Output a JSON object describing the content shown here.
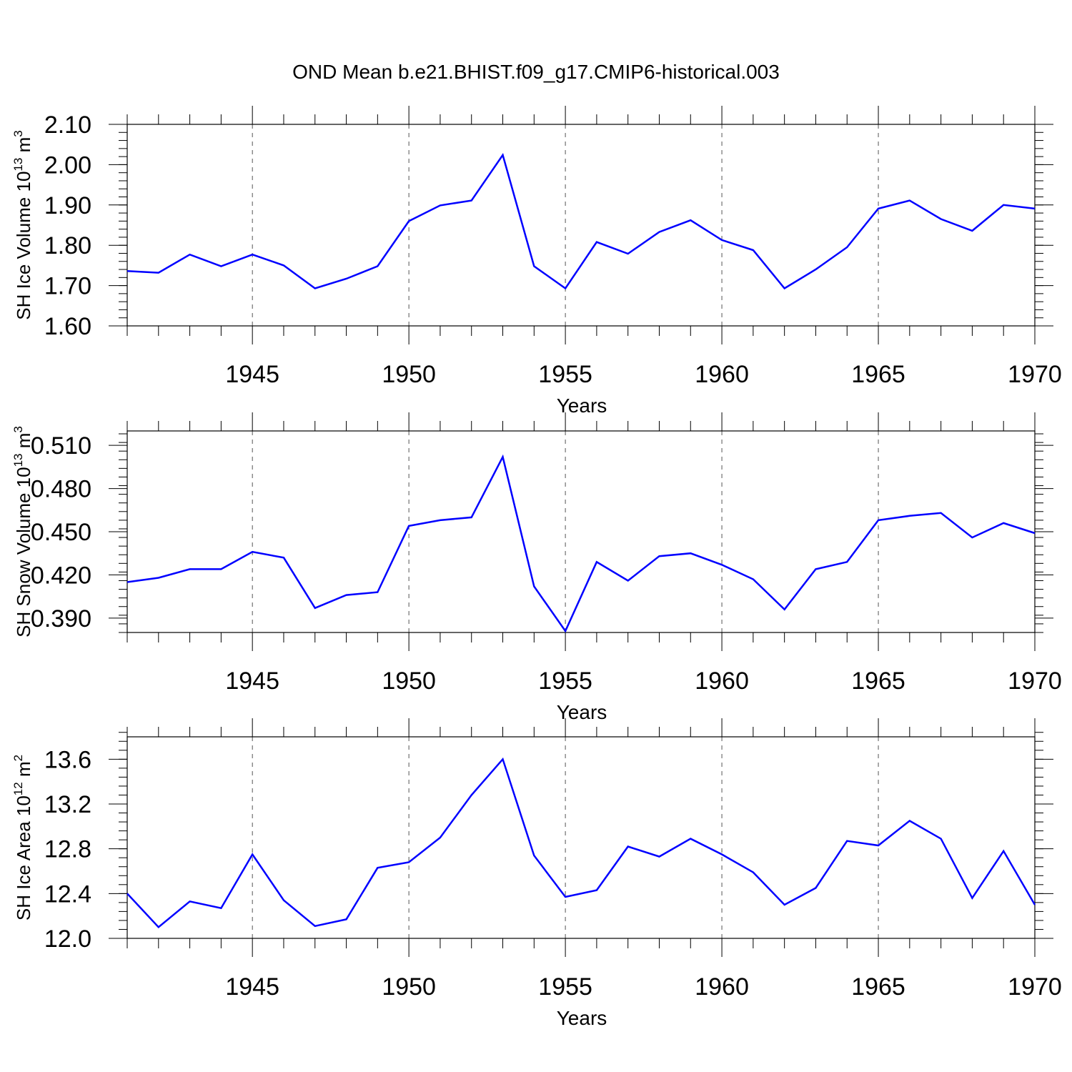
{
  "title": "OND Mean b.e21.BHIST.f09_g17.CMIP6-historical.003",
  "line_color": "#0000ff",
  "chart_data": [
    {
      "type": "line",
      "ylabel_main": "SH Ice Volume 10",
      "ylabel_exp": "13",
      "ylabel_unit": " m",
      "ylabel_unit_exp": "3",
      "xlabel": "Years",
      "xlim": [
        1941,
        1970
      ],
      "ylim": [
        1.6,
        2.1
      ],
      "grid": "vertical dashed at labeled years",
      "x_ticks": [
        "1945",
        "1950",
        "1955",
        "1960",
        "1965",
        "1970"
      ],
      "y_ticks": [
        "1.60",
        "1.70",
        "1.80",
        "1.90",
        "2.00",
        "2.10"
      ],
      "y_tick_values": [
        1.6,
        1.7,
        1.8,
        1.9,
        2.0,
        2.1
      ],
      "y_minor_step": 0.02,
      "series": [
        {
          "name": "SH Ice Volume",
          "x": [
            1941,
            1942,
            1943,
            1944,
            1945,
            1946,
            1947,
            1948,
            1949,
            1950,
            1951,
            1952,
            1953,
            1954,
            1955,
            1956,
            1957,
            1958,
            1959,
            1960,
            1961,
            1962,
            1963,
            1964,
            1965,
            1966,
            1967,
            1968,
            1969,
            1970
          ],
          "values": [
            1.736,
            1.732,
            1.777,
            1.748,
            1.777,
            1.75,
            1.693,
            1.717,
            1.748,
            1.86,
            1.899,
            1.911,
            2.024,
            1.748,
            1.693,
            1.808,
            1.779,
            1.833,
            1.862,
            1.813,
            1.788,
            1.693,
            1.74,
            1.795,
            1.891,
            1.911,
            1.865,
            1.836,
            1.9,
            1.891
          ]
        }
      ]
    },
    {
      "type": "line",
      "ylabel_main": "SH Snow Volume 10",
      "ylabel_exp": "13",
      "ylabel_unit": " m",
      "ylabel_unit_exp": "3",
      "xlabel": "Years",
      "xlim": [
        1941,
        1970
      ],
      "ylim": [
        0.38,
        0.52
      ],
      "grid": "vertical dashed at labeled years",
      "x_ticks": [
        "1945",
        "1950",
        "1955",
        "1960",
        "1965",
        "1970"
      ],
      "y_ticks": [
        "0.390",
        "0.420",
        "0.450",
        "0.480",
        "0.510"
      ],
      "y_tick_values": [
        0.39,
        0.42,
        0.45,
        0.48,
        0.51
      ],
      "y_minor_step": 0.006,
      "series": [
        {
          "name": "SH Snow Volume",
          "x": [
            1941,
            1942,
            1943,
            1944,
            1945,
            1946,
            1947,
            1948,
            1949,
            1950,
            1951,
            1952,
            1953,
            1954,
            1955,
            1956,
            1957,
            1958,
            1959,
            1960,
            1961,
            1962,
            1963,
            1964,
            1965,
            1966,
            1967,
            1968,
            1969,
            1970
          ],
          "values": [
            0.415,
            0.418,
            0.424,
            0.424,
            0.436,
            0.432,
            0.397,
            0.406,
            0.408,
            0.454,
            0.458,
            0.46,
            0.502,
            0.412,
            0.381,
            0.429,
            0.416,
            0.433,
            0.435,
            0.427,
            0.417,
            0.396,
            0.424,
            0.429,
            0.458,
            0.461,
            0.463,
            0.446,
            0.456,
            0.449
          ]
        }
      ]
    },
    {
      "type": "line",
      "ylabel_main": "SH Ice Area 10",
      "ylabel_exp": "12",
      "ylabel_unit": " m",
      "ylabel_unit_exp": "2",
      "xlabel": "Years",
      "xlim": [
        1941,
        1970
      ],
      "ylim": [
        12.0,
        13.8
      ],
      "grid": "vertical dashed at labeled years",
      "x_ticks": [
        "1945",
        "1950",
        "1955",
        "1960",
        "1965",
        "1970"
      ],
      "y_ticks": [
        "12.0",
        "12.4",
        "12.8",
        "13.2",
        "13.6"
      ],
      "y_tick_values": [
        12.0,
        12.4,
        12.8,
        13.2,
        13.6
      ],
      "y_minor_step": 0.08,
      "series": [
        {
          "name": "SH Ice Area",
          "x": [
            1941,
            1942,
            1943,
            1944,
            1945,
            1946,
            1947,
            1948,
            1949,
            1950,
            1951,
            1952,
            1953,
            1954,
            1955,
            1956,
            1957,
            1958,
            1959,
            1960,
            1961,
            1962,
            1963,
            1964,
            1965,
            1966,
            1967,
            1968,
            1969,
            1970
          ],
          "values": [
            12.4,
            12.1,
            12.33,
            12.27,
            12.75,
            12.34,
            12.11,
            12.17,
            12.63,
            12.68,
            12.9,
            13.28,
            13.6,
            12.74,
            12.37,
            12.43,
            12.82,
            12.73,
            12.89,
            12.75,
            12.59,
            12.3,
            12.45,
            12.87,
            12.83,
            13.05,
            12.89,
            12.36,
            12.78,
            12.3
          ]
        }
      ]
    }
  ]
}
